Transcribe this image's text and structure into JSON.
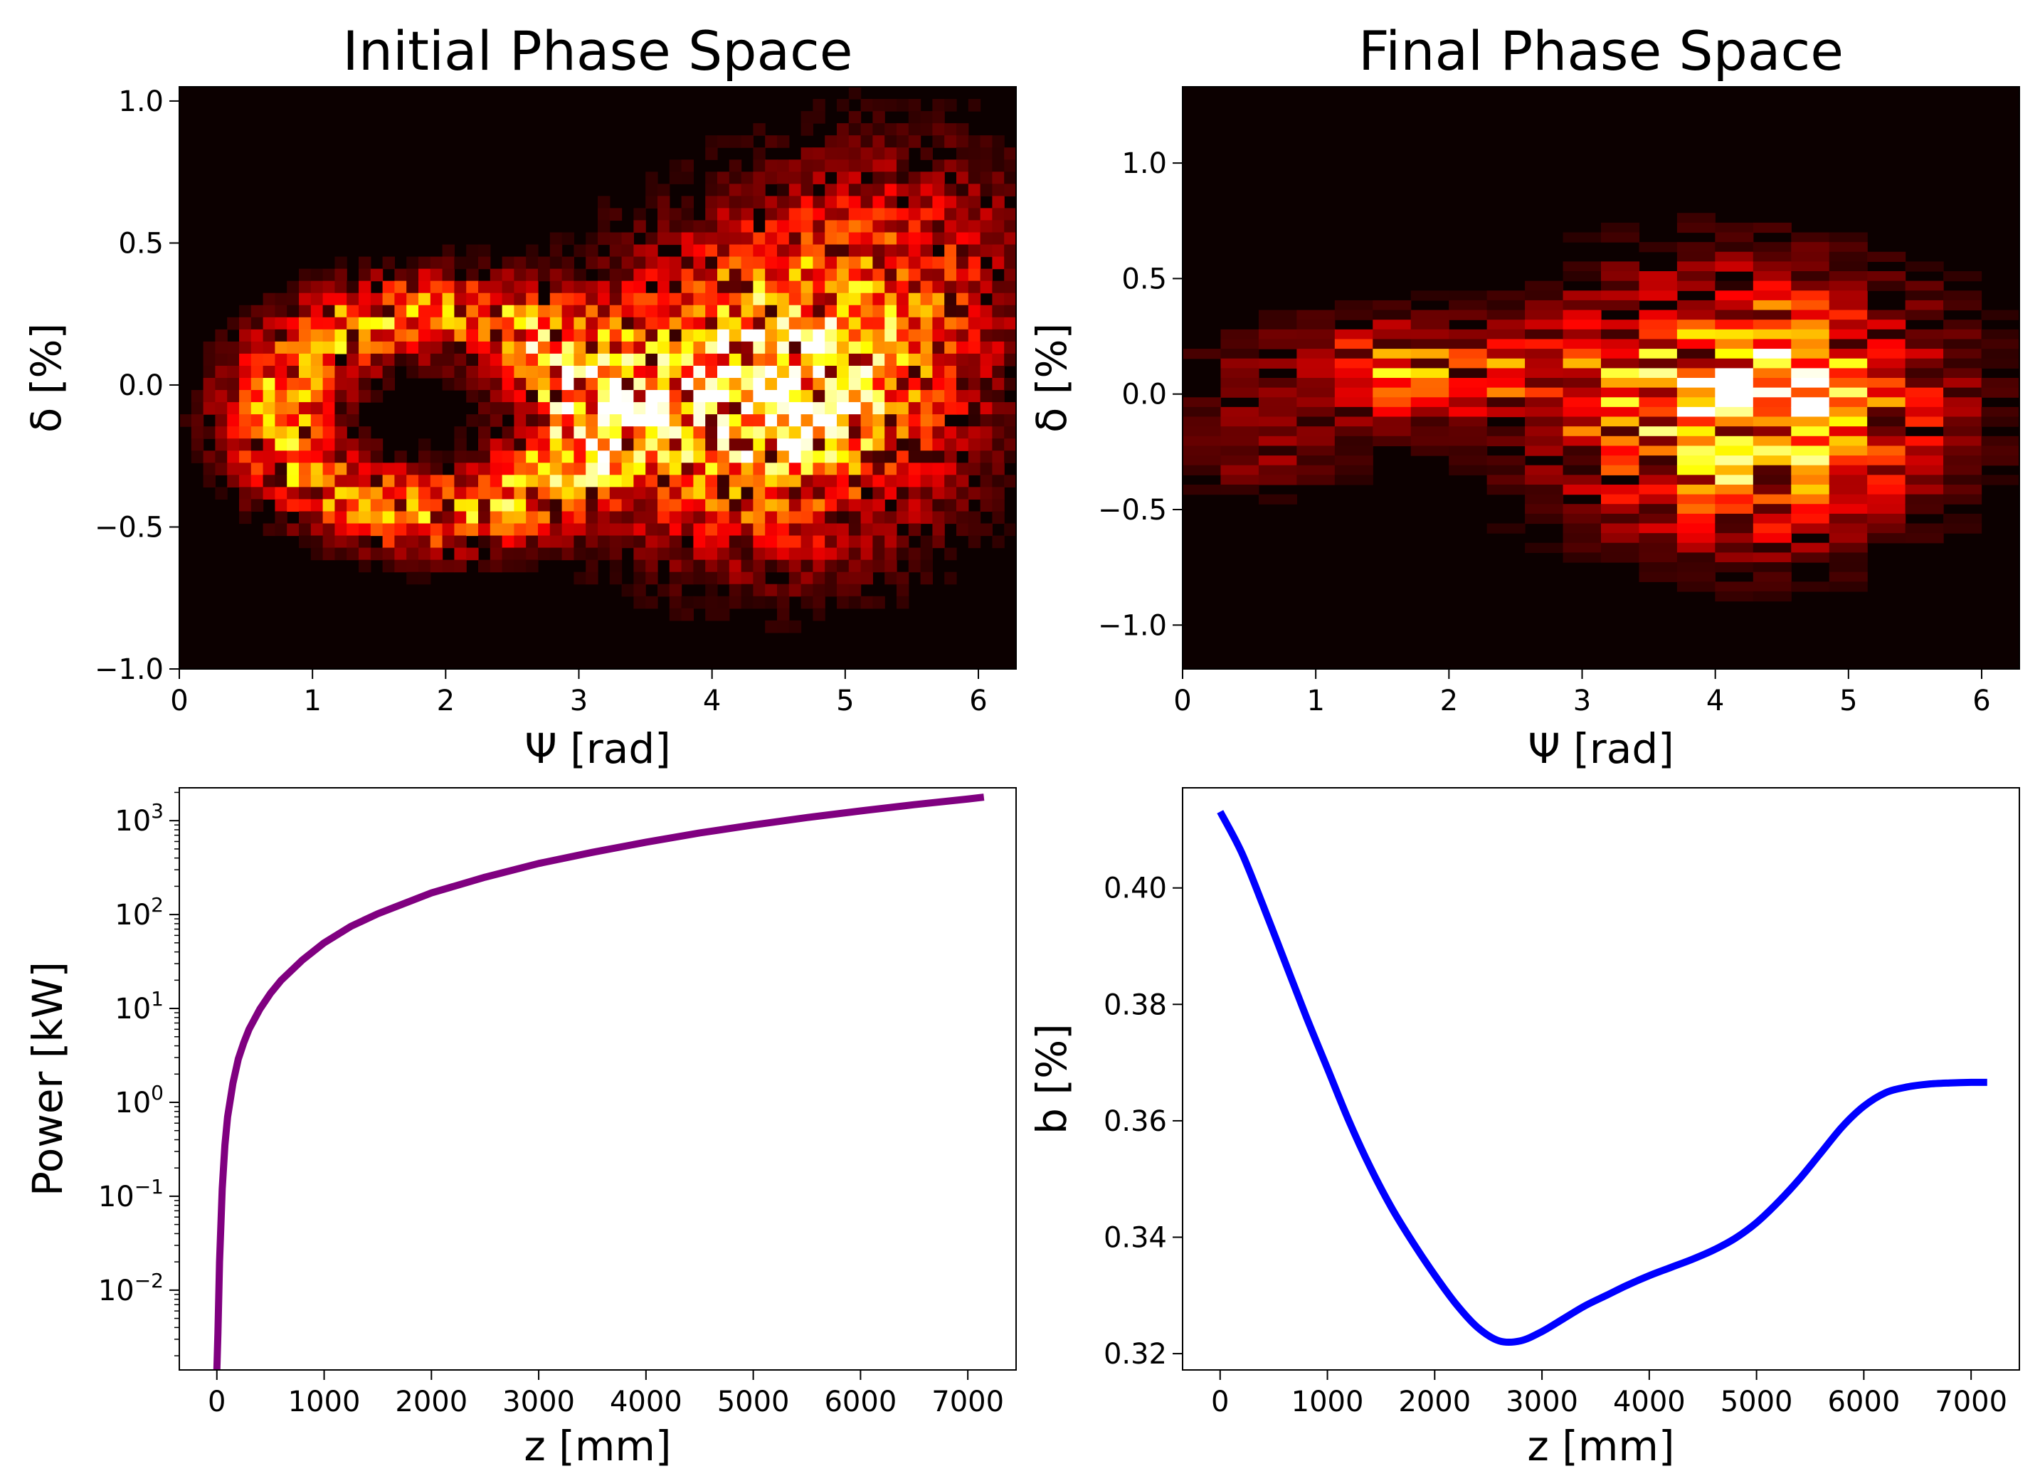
{
  "chart_data": [
    {
      "id": "p1",
      "type": "heatmap",
      "title": "Initial Phase Space",
      "xlabel": "Ψ [rad]",
      "ylabel": "δ [%]",
      "xlim": [
        0,
        6.2832
      ],
      "ylim": [
        -1.0,
        1.05
      ],
      "xticks": [
        0,
        1,
        2,
        3,
        4,
        5,
        6
      ],
      "xtick_labels": [
        "0",
        "1",
        "2",
        "3",
        "4",
        "5",
        "6"
      ],
      "yticks": [
        -1.0,
        -0.5,
        0.0,
        0.5,
        1.0
      ],
      "ytick_labels": [
        "−1.0",
        "−0.5",
        "0.0",
        "0.5",
        "1.0"
      ],
      "colormap": "hot",
      "background": "#0c0000",
      "bins": [
        70,
        48
      ],
      "seed": 7,
      "components": [
        {
          "kind": "gauss",
          "cx": 4.4,
          "cy": -0.05,
          "sx": 0.9,
          "sy": 0.34,
          "amp": 0.95
        },
        {
          "kind": "ring",
          "cx": 1.9,
          "cy": -0.1,
          "rx": 1.15,
          "ry": 0.35,
          "wx": 0.45,
          "wy": 0.15,
          "amp": 0.6
        },
        {
          "kind": "gauss",
          "cx": 5.4,
          "cy": 0.45,
          "sx": 0.8,
          "sy": 0.3,
          "amp": 0.3
        }
      ]
    },
    {
      "id": "p2",
      "type": "heatmap",
      "title": "Final Phase Space",
      "xlabel": "Ψ [rad]",
      "ylabel": "δ [%]",
      "xlim": [
        0,
        6.2832
      ],
      "ylim": [
        -1.19,
        1.33
      ],
      "xticks": [
        0,
        1,
        2,
        3,
        4,
        5,
        6
      ],
      "xtick_labels": [
        "0",
        "1",
        "2",
        "3",
        "4",
        "5",
        "6"
      ],
      "yticks": [
        -1.0,
        -0.5,
        0.0,
        0.5,
        1.0
      ],
      "ytick_labels": [
        "−1.0",
        "−0.5",
        "0.0",
        "0.5",
        "1.0"
      ],
      "colormap": "hot",
      "background": "#0c0000",
      "bins": [
        22,
        60
      ],
      "seed": 13,
      "components": [
        {
          "kind": "gauss",
          "cx": 4.2,
          "cy": -0.05,
          "sx": 0.9,
          "sy": 0.35,
          "amp": 1.0
        },
        {
          "kind": "gauss",
          "cx": 1.7,
          "cy": 0.1,
          "sx": 0.8,
          "sy": 0.14,
          "amp": 0.55
        },
        {
          "kind": "gauss",
          "cx": 0.6,
          "cy": -0.25,
          "sx": 0.55,
          "sy": 0.15,
          "amp": 0.18
        }
      ]
    },
    {
      "id": "p3",
      "type": "line",
      "yscale": "log",
      "xlabel": "z [mm]",
      "ylabel": "Power [kW]",
      "xlim": [
        -350,
        7450
      ],
      "ylim_log10": [
        -2.85,
        3.35
      ],
      "xticks": [
        0,
        1000,
        2000,
        3000,
        4000,
        5000,
        6000,
        7000
      ],
      "xtick_labels": [
        "0",
        "1000",
        "2000",
        "3000",
        "4000",
        "5000",
        "6000",
        "7000"
      ],
      "ytick_exponents": [
        -2,
        -1,
        0,
        1,
        2,
        3
      ],
      "ytick_base": "10",
      "ytick_exp_labels": [
        "−2",
        "−1",
        "0",
        "1",
        "2",
        "3"
      ],
      "series": [
        {
          "name": "power",
          "color": "#800080",
          "x": [
            0,
            10,
            25,
            50,
            75,
            100,
            150,
            200,
            250,
            300,
            400,
            500,
            600,
            800,
            1000,
            1250,
            1500,
            2000,
            2500,
            3000,
            3500,
            4000,
            4500,
            5000,
            5500,
            6000,
            6500,
            7000,
            7150
          ],
          "y": [
            0.0012,
            0.0035,
            0.02,
            0.12,
            0.35,
            0.7,
            1.6,
            2.9,
            4.3,
            6.0,
            9.8,
            14.5,
            20,
            33,
            50,
            75,
            102,
            170,
            250,
            350,
            460,
            590,
            740,
            900,
            1080,
            1270,
            1480,
            1700,
            1780
          ]
        }
      ]
    },
    {
      "id": "p4",
      "type": "line",
      "xlabel": "z [mm]",
      "ylabel": "b [%]",
      "xlim": [
        -350,
        7450
      ],
      "ylim": [
        0.3172,
        0.4172
      ],
      "xticks": [
        0,
        1000,
        2000,
        3000,
        4000,
        5000,
        6000,
        7000
      ],
      "xtick_labels": [
        "0",
        "1000",
        "2000",
        "3000",
        "4000",
        "5000",
        "6000",
        "7000"
      ],
      "yticks": [
        0.32,
        0.34,
        0.36,
        0.38,
        0.4
      ],
      "ytick_labels": [
        "0.32",
        "0.34",
        "0.36",
        "0.38",
        "0.40"
      ],
      "series": [
        {
          "name": "bunching",
          "color": "#0000ff",
          "x": [
            0,
            200,
            400,
            600,
            800,
            1000,
            1200,
            1400,
            1600,
            1800,
            2000,
            2200,
            2400,
            2600,
            2800,
            3000,
            3200,
            3400,
            3600,
            3800,
            4000,
            4200,
            4400,
            4600,
            4800,
            5000,
            5200,
            5400,
            5600,
            5800,
            6000,
            6200,
            6400,
            6600,
            6800,
            7000,
            7150
          ],
          "y": [
            0.4131,
            0.4061,
            0.397,
            0.3875,
            0.378,
            0.369,
            0.36,
            0.352,
            0.345,
            0.339,
            0.3335,
            0.3285,
            0.3245,
            0.3222,
            0.3222,
            0.3238,
            0.326,
            0.3282,
            0.33,
            0.3318,
            0.3334,
            0.3348,
            0.3362,
            0.3378,
            0.3398,
            0.3425,
            0.346,
            0.35,
            0.3545,
            0.359,
            0.3625,
            0.3648,
            0.3658,
            0.3663,
            0.3665,
            0.3666,
            0.3666
          ]
        }
      ]
    }
  ]
}
